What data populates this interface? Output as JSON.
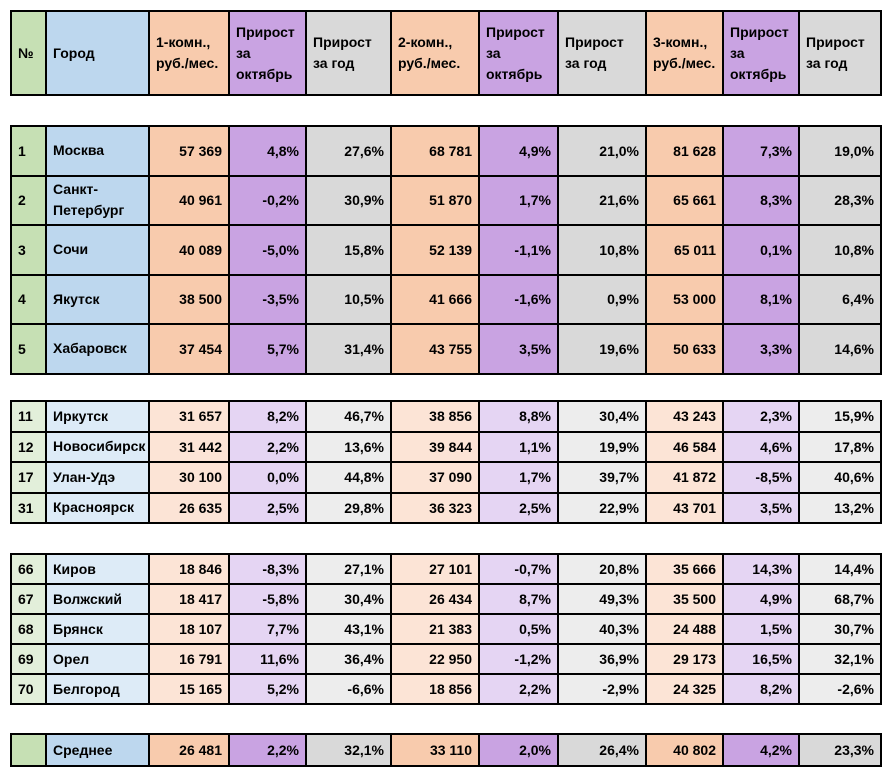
{
  "colors": {
    "green": "#c6e0b4",
    "blue": "#bdd7ee",
    "orange": "#f8cbad",
    "purple": "#c9a3e2",
    "gray": "#d9d9d9"
  },
  "header": [
    "№",
    "Город",
    "1-комн., руб./мес.",
    "Прирост за октябрь",
    "Прирост за год",
    "2-комн., руб./мес.",
    "Прирост за октябрь",
    "Прирост за год",
    "3-комн., руб./мес.",
    "Прирост за октябрь",
    "Прирост за год"
  ],
  "groups": [
    {
      "style": "s",
      "rows": [
        [
          "1",
          "Москва",
          "57 369",
          "4,8%",
          "27,6%",
          "68 781",
          "4,9%",
          "21,0%",
          "81 628",
          "7,3%",
          "19,0%"
        ],
        [
          "2",
          "Санкт-Петербург",
          "40 961",
          "-0,2%",
          "30,9%",
          "51 870",
          "1,7%",
          "21,6%",
          "65 661",
          "8,3%",
          "28,3%"
        ],
        [
          "3",
          "Сочи",
          "40 089",
          "-5,0%",
          "15,8%",
          "52 139",
          "-1,1%",
          "10,8%",
          "65 011",
          "0,1%",
          "10,8%"
        ],
        [
          "4",
          "Якутск",
          "38 500",
          "-3,5%",
          "10,5%",
          "41 666",
          "-1,6%",
          "0,9%",
          "53 000",
          "8,1%",
          "6,4%"
        ],
        [
          "5",
          "Хабаровск",
          "37 454",
          "5,7%",
          "31,4%",
          "43 755",
          "3,5%",
          "19,6%",
          "50 633",
          "3,3%",
          "14,6%"
        ]
      ]
    },
    {
      "style": "l",
      "rows": [
        [
          "11",
          "Иркутск",
          "31 657",
          "8,2%",
          "46,7%",
          "38 856",
          "8,8%",
          "30,4%",
          "43 243",
          "2,3%",
          "15,9%"
        ],
        [
          "12",
          "Новосибирск",
          "31 442",
          "2,2%",
          "13,6%",
          "39 844",
          "1,1%",
          "19,9%",
          "46 584",
          "4,6%",
          "17,8%"
        ],
        [
          "17",
          "Улан-Удэ",
          "30 100",
          "0,0%",
          "44,8%",
          "37 090",
          "1,7%",
          "39,7%",
          "41 872",
          "-8,5%",
          "40,6%"
        ],
        [
          "31",
          "Красноярск",
          "26 635",
          "2,5%",
          "29,8%",
          "36 323",
          "2,5%",
          "22,9%",
          "43 701",
          "3,5%",
          "13,2%"
        ]
      ]
    },
    {
      "style": "l",
      "rows": [
        [
          "66",
          "Киров",
          "18 846",
          "-8,3%",
          "27,1%",
          "27 101",
          "-0,7%",
          "20,8%",
          "35 666",
          "14,3%",
          "14,4%"
        ],
        [
          "67",
          "Волжский",
          "18 417",
          "-5,8%",
          "30,4%",
          "26 434",
          "8,7%",
          "49,3%",
          "35 500",
          "4,9%",
          "68,7%"
        ],
        [
          "68",
          "Брянск",
          "18 107",
          "7,7%",
          "43,1%",
          "21 383",
          "0,5%",
          "40,3%",
          "24 488",
          "1,5%",
          "30,7%"
        ],
        [
          "69",
          "Орел",
          "16 791",
          "11,6%",
          "36,4%",
          "22 950",
          "-1,2%",
          "36,9%",
          "29 173",
          "16,5%",
          "32,1%"
        ],
        [
          "70",
          "Белгород",
          "15 165",
          "5,2%",
          "-6,6%",
          "18 856",
          "2,2%",
          "-2,9%",
          "24 325",
          "8,2%",
          "-2,6%"
        ]
      ]
    },
    {
      "style": "s",
      "rows": [
        [
          "",
          "Среднее",
          "26 481",
          "2,2%",
          "32,1%",
          "33 110",
          "2,0%",
          "26,4%",
          "40 802",
          "4,2%",
          "23,3%"
        ]
      ]
    }
  ]
}
